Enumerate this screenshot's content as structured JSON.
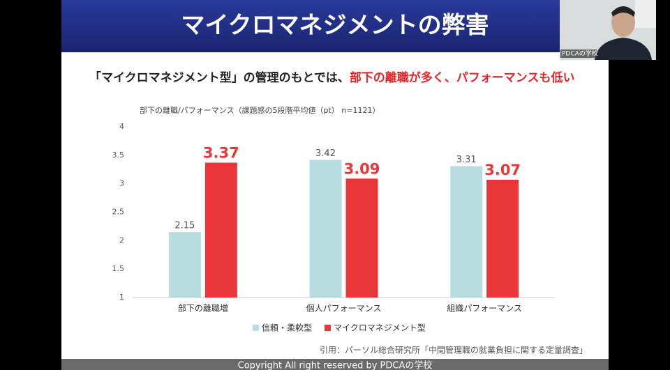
{
  "slide": {
    "title": "マイクロマネジメントの弊害",
    "subtitle": [
      "「マイクロマネジメント型」の管理のもとでは、",
      "部下の離職が多く、パフォーマンスも低い"
    ],
    "citation": "引用：パーソル総合研究所「中間管理職の就業負担に関する定量調査」",
    "footer": "Copyright All right reserved by PDCAの学校",
    "webcam_label": "PDCAの学校"
  },
  "chart_data": {
    "type": "bar",
    "title": "部下の離職/パフォーマンス（課題感の5段階平均値（pt） n=1121）",
    "categories": [
      "部下の離職増",
      "個人パフォーマンス",
      "組織パフォーマンス"
    ],
    "series": [
      {
        "name": "信頼・柔軟型",
        "color": "#b7dde1",
        "values": [
          2.15,
          3.42,
          3.31
        ]
      },
      {
        "name": "マイクロマネジメント型",
        "color": "#e83639",
        "values": [
          3.37,
          3.09,
          3.07
        ]
      }
    ],
    "ylim": [
      1,
      4
    ],
    "yticks": [
      1,
      1.5,
      2,
      2.5,
      3,
      3.5,
      4
    ],
    "grid": false,
    "legend": "bottom"
  }
}
